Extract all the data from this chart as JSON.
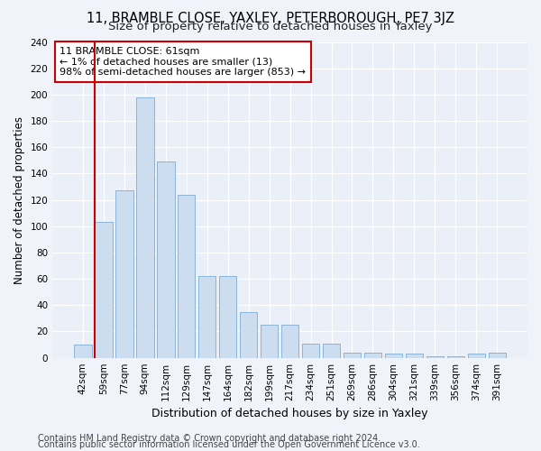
{
  "title": "11, BRAMBLE CLOSE, YAXLEY, PETERBOROUGH, PE7 3JZ",
  "subtitle": "Size of property relative to detached houses in Yaxley",
  "xlabel": "Distribution of detached houses by size in Yaxley",
  "ylabel": "Number of detached properties",
  "categories": [
    "42sqm",
    "59sqm",
    "77sqm",
    "94sqm",
    "112sqm",
    "129sqm",
    "147sqm",
    "164sqm",
    "182sqm",
    "199sqm",
    "217sqm",
    "234sqm",
    "251sqm",
    "269sqm",
    "286sqm",
    "304sqm",
    "321sqm",
    "339sqm",
    "356sqm",
    "374sqm",
    "391sqm"
  ],
  "values": [
    10,
    103,
    127,
    198,
    149,
    124,
    62,
    62,
    35,
    25,
    25,
    11,
    11,
    4,
    4,
    3,
    3,
    1,
    1,
    3,
    4
  ],
  "bar_color": "#ccddf0",
  "bar_edge_color": "#8ab4d8",
  "vline_x": 1,
  "vline_color": "#cc0000",
  "annotation_line1": "11 BRAMBLE CLOSE: 61sqm",
  "annotation_line2": "← 1% of detached houses are smaller (13)",
  "annotation_line3": "98% of semi-detached houses are larger (853) →",
  "annotation_box_facecolor": "#ffffff",
  "annotation_box_edgecolor": "#cc0000",
  "ylim": [
    0,
    240
  ],
  "yticks": [
    0,
    20,
    40,
    60,
    80,
    100,
    120,
    140,
    160,
    180,
    200,
    220,
    240
  ],
  "footer1": "Contains HM Land Registry data © Crown copyright and database right 2024.",
  "footer2": "Contains public sector information licensed under the Open Government Licence v3.0.",
  "fig_bg_color": "#f0f4fa",
  "plot_bg_color": "#eaeff8",
  "grid_color": "#ffffff",
  "title_fontsize": 10.5,
  "subtitle_fontsize": 9.5,
  "ylabel_fontsize": 8.5,
  "xlabel_fontsize": 9,
  "tick_fontsize": 7.5,
  "annotation_fontsize": 8,
  "footer_fontsize": 7
}
